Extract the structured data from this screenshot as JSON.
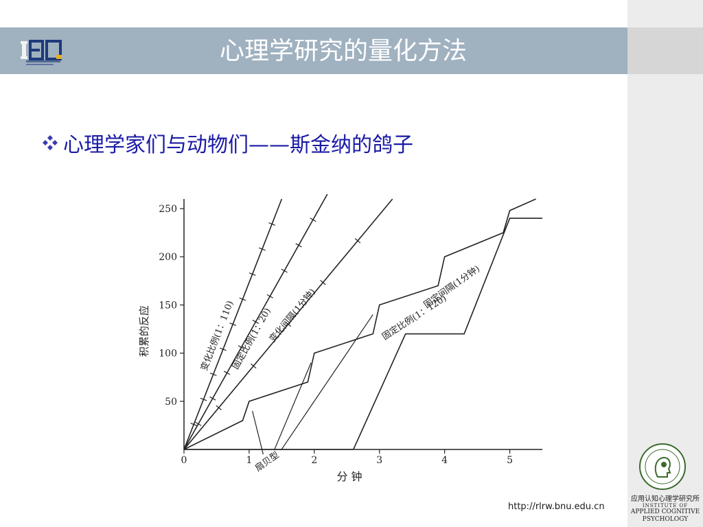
{
  "slide": {
    "title": "心理学研究的量化方法",
    "bullet": "心理学家们与动物们——斯金纳的鸽子",
    "url": "http://rlrw.bnu.edu.cn"
  },
  "logo": {
    "text": "IEQ"
  },
  "institute": {
    "name_cn": "应用认知心理学研究所",
    "institute_of": "INSTITUTE OF",
    "name_en_1": "APPLIED COGNITIVE",
    "name_en_2": "PSYCHOLOGY"
  },
  "colors": {
    "title_bar": "#a0b1c0",
    "bullet_text": "#1a1aa6",
    "bullet_icon": "#3a3ab0",
    "panel": "#ececec"
  },
  "chart_data": {
    "type": "line",
    "xlabel": "分 钟",
    "ylabel": "积累的反应",
    "xlim": [
      0,
      5.5
    ],
    "ylim": [
      0,
      260
    ],
    "x_ticks": [
      "0",
      "1",
      "2",
      "3",
      "4",
      "5"
    ],
    "y_ticks": [
      "50",
      "100",
      "150",
      "200",
      "250"
    ],
    "series": [
      {
        "name": "变化比例(1：110)",
        "points": [
          [
            0,
            0
          ],
          [
            1.5,
            260
          ]
        ]
      },
      {
        "name": "固定比例(1：20)",
        "points": [
          [
            0,
            0
          ],
          [
            2.2,
            265
          ]
        ]
      },
      {
        "name": "变化间隔(1分钟)",
        "points": [
          [
            0,
            0
          ],
          [
            3.2,
            260
          ]
        ]
      },
      {
        "name": "固定间隔(1分钟)",
        "points": [
          [
            0,
            0
          ],
          [
            0.9,
            30
          ],
          [
            1,
            50
          ],
          [
            1.9,
            70
          ],
          [
            2,
            100
          ],
          [
            2.9,
            120
          ],
          [
            3,
            150
          ],
          [
            3.9,
            170
          ],
          [
            4,
            200
          ],
          [
            4.9,
            225
          ],
          [
            5,
            248
          ],
          [
            5.4,
            260
          ]
        ]
      },
      {
        "name": "固定比例(1：120)",
        "points": [
          [
            0,
            0
          ],
          [
            2.6,
            0
          ],
          [
            3.4,
            120
          ],
          [
            4.3,
            120
          ],
          [
            5,
            240
          ],
          [
            5.5,
            240
          ]
        ]
      }
    ],
    "annotations": [
      "扇贝型"
    ]
  }
}
